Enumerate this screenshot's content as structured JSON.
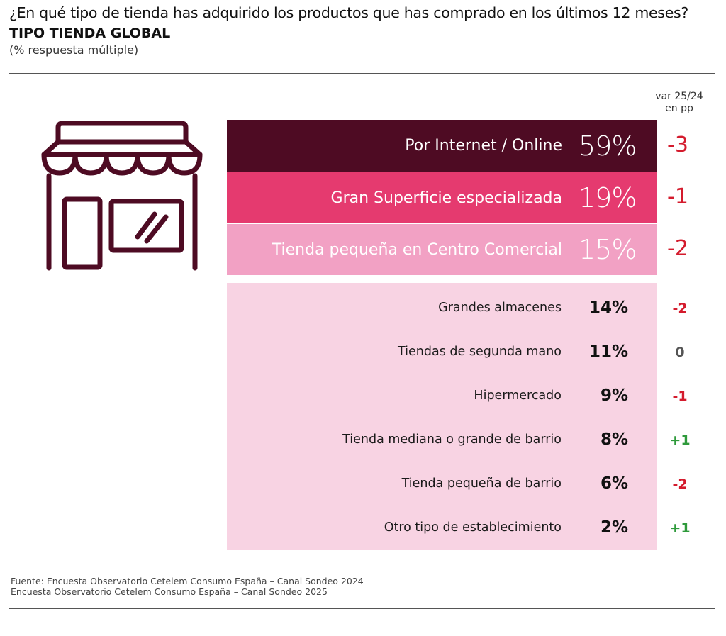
{
  "header": {
    "title": "¿En qué tipo de tienda has adquirido los productos que has comprado en los últimos 12 meses?",
    "subtitle": "TIPO TIENDA GLOBAL",
    "note": "(% respuesta múltiple)",
    "var_header_line1": "var 25/24",
    "var_header_line2": "en pp"
  },
  "icon": {
    "name": "store-icon",
    "color": "#4e0b23"
  },
  "chart_data": {
    "type": "bar",
    "title": "¿En qué tipo de tienda has adquirido los productos que has comprado en los últimos 12 meses?",
    "subtitle": "TIPO TIENDA GLOBAL",
    "unit": "%",
    "categories": [
      "Por Internet / Online",
      "Gran Superficie especializada",
      "Tienda pequeña en Centro Comercial",
      "Grandes almacenes",
      "Tiendas de segunda mano",
      "Hipermercado",
      "Tienda mediana o grande de barrio",
      "Tienda pequeña de barrio",
      "Otro tipo de establecimiento"
    ],
    "values": [
      59,
      19,
      15,
      14,
      11,
      9,
      8,
      6,
      2
    ],
    "value_labels": [
      "59%",
      "19%",
      "15%",
      "14%",
      "11%",
      "9%",
      "8%",
      "6%",
      "2%"
    ],
    "variation_pp": [
      "-3",
      "-1",
      "-2",
      "-2",
      "0",
      "-1",
      "+1",
      "-2",
      "+1"
    ],
    "colors": {
      "top1": "#4e0b23",
      "top2": "#e53a6f",
      "top3": "#f2a1c4",
      "rest": "#f8d3e3",
      "negative": "#d41b2d",
      "neutral": "#555555",
      "positive": "#2e9a3b"
    }
  },
  "footer": {
    "source_line1": "Fuente: Encuesta Observatorio Cetelem Consumo España – Canal Sondeo 2024",
    "source_line2": "Encuesta Observatorio Cetelem Consumo España – Canal Sondeo 2025"
  }
}
